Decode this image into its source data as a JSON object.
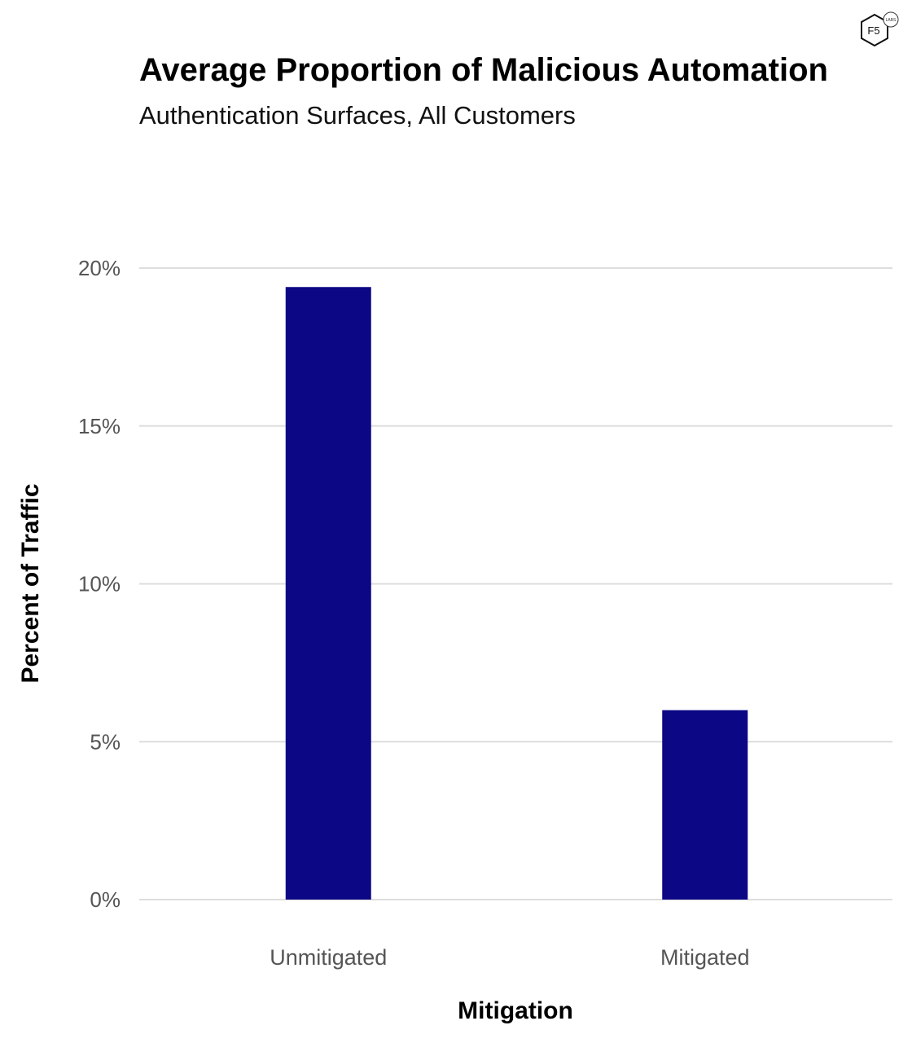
{
  "logo": {
    "text": "F5",
    "subtext": "LABS"
  },
  "chart_data": {
    "type": "bar",
    "title": "Average Proportion of Malicious Automation",
    "subtitle": "Authentication Surfaces, All Customers",
    "xlabel": "Mitigation",
    "ylabel": "Percent of Traffic",
    "categories": [
      "Unmitigated",
      "Mitigated"
    ],
    "values": [
      19.4,
      6.0
    ],
    "ylim": [
      0,
      20
    ],
    "yticks": [
      0,
      5,
      10,
      15,
      20
    ],
    "ytick_labels": [
      "0%",
      "5%",
      "10%",
      "15%",
      "20%"
    ],
    "grid": true,
    "legend": "none",
    "bar_color": "#0c0785",
    "grid_color": "#dddddd"
  }
}
